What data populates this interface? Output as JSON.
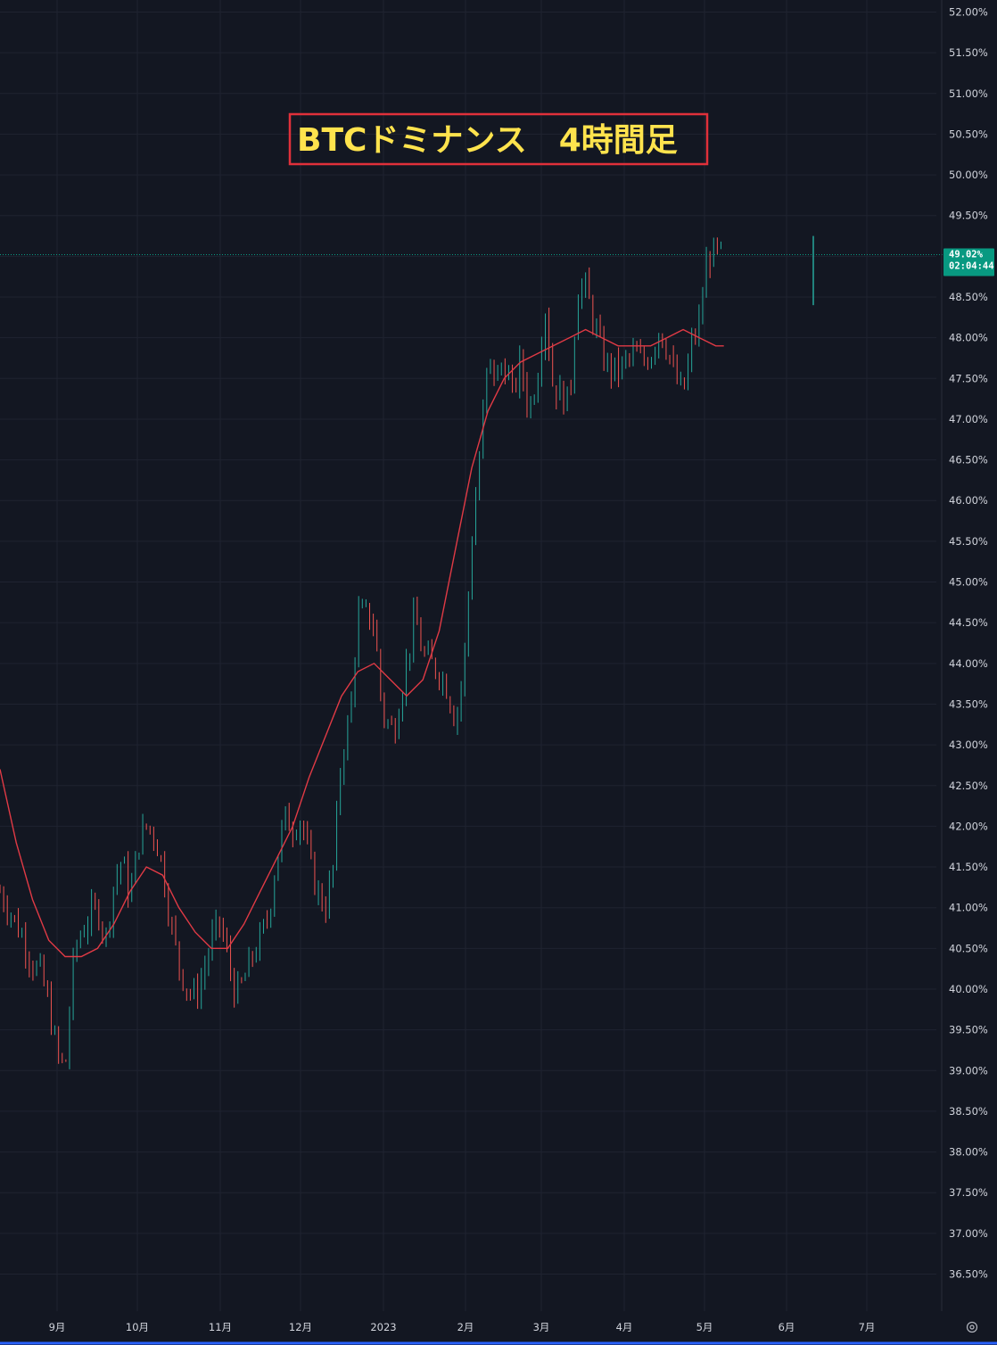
{
  "chart_data": {
    "type": "line",
    "title": "BTCドミナンス　4時間足",
    "y_unit": "%",
    "ylim": [
      36.25,
      52.1
    ],
    "y_ticks": [
      "52.00%",
      "51.50%",
      "51.00%",
      "50.50%",
      "50.00%",
      "49.50%",
      "49.00%",
      "48.50%",
      "48.00%",
      "47.50%",
      "47.00%",
      "46.50%",
      "46.00%",
      "45.50%",
      "45.00%",
      "44.50%",
      "44.00%",
      "43.50%",
      "43.00%",
      "42.50%",
      "42.00%",
      "41.50%",
      "41.00%",
      "40.50%",
      "40.00%",
      "39.50%",
      "39.00%",
      "38.50%",
      "38.00%",
      "37.50%",
      "37.00%",
      "36.50%"
    ],
    "x_ticks": [
      "9月",
      "10月",
      "11月",
      "12月",
      "2023",
      "2月",
      "3月",
      "4月",
      "5月",
      "6月",
      "7月"
    ],
    "grid": true,
    "current_price_label": "49.02%",
    "countdown_label": "02:04:44",
    "colors": {
      "background": "#131722",
      "up": "#26a69a",
      "down": "#ef5350",
      "ma": "#e03a45",
      "price_tag": "#089981",
      "title_border": "#e0303a",
      "title_text": "#ffe34d"
    },
    "series": [
      {
        "kind": "price",
        "x": [
          0,
          1,
          2,
          3,
          4,
          5,
          6,
          7,
          8,
          9,
          9.3,
          10,
          11,
          12,
          13,
          14,
          15,
          16,
          17,
          18,
          19,
          20,
          21,
          22,
          23,
          24,
          25,
          26,
          27,
          28,
          29,
          30,
          31,
          32,
          33,
          34,
          35,
          36,
          37,
          38,
          39,
          40,
          41,
          42,
          43,
          44,
          45,
          46,
          47,
          48,
          48.5,
          49,
          50,
          51,
          52,
          53,
          54,
          55,
          56,
          57,
          58,
          59,
          60,
          61,
          62,
          63,
          64,
          65,
          66,
          67,
          68,
          69,
          70,
          71,
          72,
          73,
          74,
          75,
          76,
          77,
          78,
          79,
          80,
          81,
          82,
          83,
          84,
          85,
          86,
          87,
          88,
          89,
          90,
          91,
          92,
          93,
          94,
          95,
          96,
          97,
          98,
          99,
          100
        ],
        "values": [
          41.2,
          41.0,
          40.8,
          40.6,
          40.3,
          40.2,
          39.8,
          39.2,
          39.0,
          40.3,
          40.5,
          40.7,
          40.9,
          41.0,
          40.6,
          41.3,
          41.6,
          41.1,
          41.8,
          42.0,
          41.9,
          41.5,
          40.8,
          40.3,
          40.0,
          39.9,
          40.2,
          40.6,
          40.8,
          40.4,
          39.9,
          40.1,
          40.4,
          40.6,
          40.9,
          41.6,
          42.1,
          42.0,
          42.1,
          41.6,
          41.2,
          41.0,
          41.5,
          42.9,
          43.3,
          44.6,
          44.6,
          44.5,
          43.4,
          43.2,
          43.2,
          43.5,
          44.0,
          44.6,
          44.1,
          44.0,
          43.9,
          43.7,
          43.3,
          43.9,
          45.5,
          46.6,
          47.7,
          47.5,
          47.7,
          47.3,
          47.7,
          47.1,
          47.5,
          48.4,
          47.4,
          47.3,
          47.2,
          48.6,
          48.6,
          48.2,
          47.8,
          47.6,
          47.6,
          47.7,
          47.8,
          47.7,
          47.8,
          48.1,
          47.9,
          47.5,
          47.3,
          47.9,
          48.2,
          49.02,
          49.02,
          49.02,
          49.02,
          49.02,
          49.02,
          49.02,
          49.02,
          49.02,
          49.02,
          49.02,
          49.02,
          49.02,
          49.02
        ]
      },
      {
        "kind": "moving_average",
        "x": [
          0,
          2,
          4,
          6,
          8,
          10,
          12,
          14,
          16,
          18,
          20,
          22,
          24,
          26,
          28,
          30,
          32,
          34,
          36,
          38,
          40,
          42,
          44,
          46,
          48,
          50,
          52,
          54,
          56,
          58,
          60,
          62,
          64,
          66,
          68,
          70,
          72,
          74,
          76,
          78,
          80,
          82,
          84,
          86,
          88,
          89
        ],
        "values": [
          42.7,
          41.8,
          41.1,
          40.6,
          40.4,
          40.4,
          40.5,
          40.8,
          41.2,
          41.5,
          41.4,
          41.0,
          40.7,
          40.5,
          40.5,
          40.8,
          41.2,
          41.6,
          42.0,
          42.6,
          43.1,
          43.6,
          43.9,
          44.0,
          43.8,
          43.6,
          43.8,
          44.4,
          45.4,
          46.4,
          47.1,
          47.5,
          47.7,
          47.8,
          47.9,
          48.0,
          48.1,
          48.0,
          47.9,
          47.9,
          47.9,
          48.0,
          48.1,
          48.0,
          47.9,
          47.9
        ]
      }
    ]
  }
}
